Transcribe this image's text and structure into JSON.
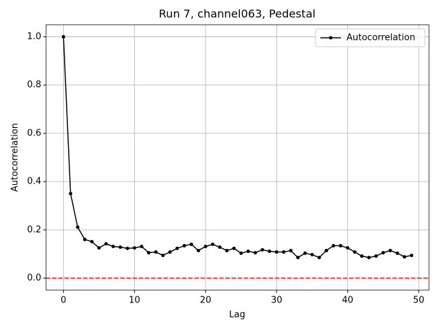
{
  "chart_data": {
    "type": "line",
    "title": "Run 7, channel063, Pedestal",
    "xlabel": "Lag",
    "ylabel": "Autocorrelation",
    "x": [
      0,
      1,
      2,
      3,
      4,
      5,
      6,
      7,
      8,
      9,
      10,
      11,
      12,
      13,
      14,
      15,
      16,
      17,
      18,
      19,
      20,
      21,
      22,
      23,
      24,
      25,
      26,
      27,
      28,
      29,
      30,
      31,
      32,
      33,
      34,
      35,
      36,
      37,
      38,
      39,
      40,
      41,
      42,
      43,
      44,
      45,
      46,
      47,
      48,
      49
    ],
    "series": [
      {
        "name": "Autocorrelation",
        "color": "#000000",
        "values": [
          1.0,
          0.35,
          0.211,
          0.16,
          0.151,
          0.125,
          0.142,
          0.131,
          0.128,
          0.123,
          0.125,
          0.131,
          0.105,
          0.108,
          0.094,
          0.108,
          0.123,
          0.134,
          0.14,
          0.114,
          0.131,
          0.14,
          0.128,
          0.114,
          0.123,
          0.103,
          0.111,
          0.105,
          0.117,
          0.111,
          0.108,
          0.108,
          0.114,
          0.085,
          0.103,
          0.097,
          0.085,
          0.114,
          0.134,
          0.134,
          0.125,
          0.108,
          0.091,
          0.085,
          0.091,
          0.105,
          0.114,
          0.103,
          0.088,
          0.094
        ]
      }
    ],
    "hlines": [
      {
        "value": 0,
        "color": "#ff0000"
      }
    ],
    "xlim": [
      -2.45,
      51.45
    ],
    "xticks": [
      0,
      10,
      20,
      30,
      40,
      50
    ],
    "ylim": [
      -0.05,
      1.05
    ],
    "yticks": [
      {
        "value": 0,
        "label": "0.0"
      },
      0.2,
      0.4,
      0.6,
      0.8,
      {
        "value": 1,
        "label": "1.0"
      }
    ],
    "grid": true,
    "legend": "upper-right"
  }
}
